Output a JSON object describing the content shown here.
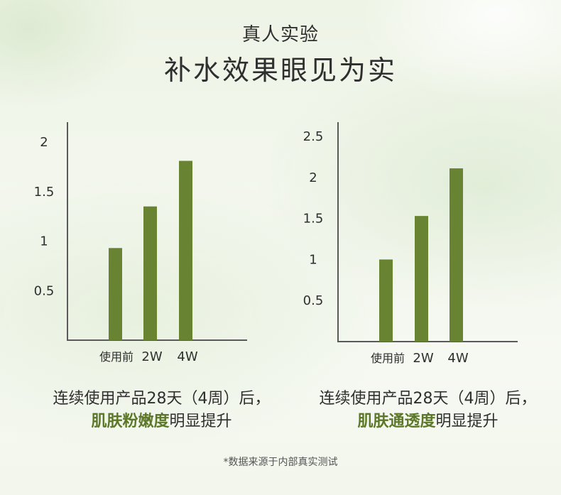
{
  "header": {
    "subtitle": "真人实验",
    "title": "补水效果眼见为实"
  },
  "colors": {
    "bar": "#688331",
    "axis": "#5a5a5a",
    "highlight": "#5b7727"
  },
  "chart_data": [
    {
      "type": "bar",
      "categories": [
        "使用前",
        "2W",
        "4W"
      ],
      "values": [
        0.93,
        1.35,
        1.81
      ],
      "yticks": [
        "0.5",
        "1",
        "1.5",
        "2"
      ],
      "ylim": [
        0,
        2.2
      ],
      "title": "",
      "xlabel": "",
      "ylabel": "",
      "grid": false
    },
    {
      "type": "bar",
      "categories": [
        "使用前",
        "2W",
        "4W"
      ],
      "values": [
        1.0,
        1.53,
        2.11
      ],
      "yticks": [
        "0.5",
        "1",
        "1.5",
        "2",
        "2.5"
      ],
      "ylim": [
        0,
        2.65
      ],
      "title": "",
      "xlabel": "",
      "ylabel": "",
      "grid": false
    }
  ],
  "captions": [
    {
      "line1": "连续使用产品28天（4周）后，",
      "highlight": "肌肤粉嫩度",
      "rest": "明显提升"
    },
    {
      "line1": "连续使用产品28天（4周）后，",
      "highlight": "肌肤通透度",
      "rest": "明显提升"
    }
  ],
  "footnote": "*数据来源于内部真实测试"
}
